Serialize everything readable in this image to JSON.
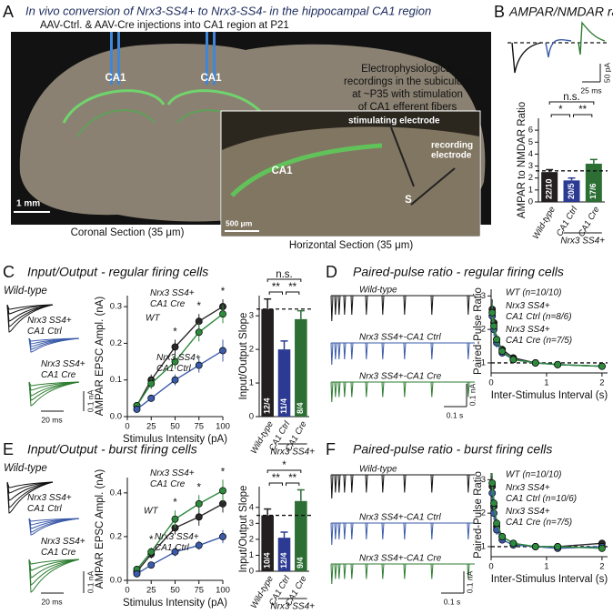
{
  "figure": {
    "panel_a": {
      "letter": "A",
      "title": "In vivo conversion of Nrx3-SS4+ to Nrx3-SS4- in the hippocampal CA1 region",
      "subtitle": "AAV-Ctrl. & AAV-Cre injections into CA1 region at P21",
      "region_left": "CA1",
      "region_right": "CA1",
      "scale_coronal": "1 mm",
      "caption_coronal": "Coronal Section (35 μm)",
      "inset_lines": [
        "Electrophysiological",
        "recordings in the subiculum",
        "at ~P35 with stimulation",
        "of CA1 efferent fibers"
      ],
      "stim_label": "stimulating electrode",
      "rec_label_lines": [
        "recording",
        "electrode"
      ],
      "region_inset": "CA1",
      "region_s": "S",
      "scale_horizontal": "500 μm",
      "caption_horizontal": "Horizontal Section (35 μm)"
    },
    "panel_b": {
      "letter": "B",
      "scale_x": "25 ms",
      "scale_y": "50 pA"
    },
    "panel_c": {
      "letter": "C",
      "trace_labels": [
        "Wild-type",
        "Nrx3 SS4+ CA1 Ctrl",
        "Nrx3 SS4+ CA1 Cre"
      ],
      "scale_x": "20 ms",
      "scale_y": "0.1 nA"
    },
    "panel_d": {
      "letter": "D",
      "trace_labels": [
        "Wild-type",
        "Nrx3 SS4+-CA1 Ctrl",
        "Nrx3 SS4+-CA1 Cre"
      ],
      "scale_x": "0.1 s",
      "scale_y": "0.1 nA"
    },
    "panel_e": {
      "letter": "E",
      "trace_labels": [
        "Wild-type",
        "Nrx3 SS4+ CA1 Ctrl",
        "Nrx3 SS4+ CA1 Cre"
      ],
      "scale_x": "20 ms",
      "scale_y": "0.1 nA"
    },
    "panel_f": {
      "letter": "F",
      "trace_labels": [
        "Wild-type",
        "Nrx3 SS4+-CA1 Ctrl",
        "Nrx3 SS4+-CA1 Cre"
      ],
      "scale_x": "0.1 s",
      "scale_y": "0.1 nA"
    }
  },
  "chart_data": [
    {
      "type": "bar",
      "title": "AMPAR/NMDAR ratio",
      "ylabel": "AMPAR to NMDAR Ratio",
      "categories": [
        "Wild-type",
        "CA1 Ctrl",
        "CA1 Cre"
      ],
      "group_label": "Nrx3 SS4+",
      "values": [
        2.5,
        1.8,
        3.2
      ],
      "errors": [
        0.2,
        0.2,
        0.35
      ],
      "n_labels": [
        "22/10",
        "20/5",
        "17/6"
      ],
      "colors": [
        "#231f20",
        "#2c3a93",
        "#2d6e35"
      ],
      "ylim": [
        0,
        7
      ],
      "yticks": [
        0,
        1,
        2,
        3,
        4,
        5,
        6
      ],
      "reference_line": 2.6,
      "significance": [
        {
          "label": "*",
          "from": 0,
          "to": 1
        },
        {
          "label": "**",
          "from": 1,
          "to": 2
        },
        {
          "label": "n.s.",
          "from": 0,
          "to": 2
        }
      ]
    },
    {
      "type": "line",
      "title": "Input/Output - regular firing cells",
      "xlabel": "Stimulus Intensity (pA)",
      "ylabel": "AMPAR EPSC Ampl. (nA)",
      "x": [
        10,
        25,
        50,
        75,
        100
      ],
      "xlim": [
        0,
        100
      ],
      "xticks": [
        0,
        25,
        50,
        75,
        100
      ],
      "ylim": [
        0,
        0.33
      ],
      "yticks": [
        {
          "value": 0,
          "label": "0.0"
        },
        0.1,
        0.2,
        0.3
      ],
      "series": [
        {
          "name": "WT",
          "color": "#2a2a2a",
          "values": [
            0.03,
            0.1,
            0.19,
            0.26,
            0.3
          ],
          "errors": [
            0.005,
            0.015,
            0.02,
            0.02,
            0.02
          ]
        },
        {
          "name": "Nrx3 SS4+ CA1 Cre",
          "color": "#2e8b3e",
          "values": [
            0.03,
            0.09,
            0.15,
            0.23,
            0.28
          ],
          "errors": [
            0.005,
            0.015,
            0.02,
            0.025,
            0.025
          ]
        },
        {
          "name": "Nrx3 SS4+ CA1 Ctrl",
          "color": "#3b5ba9",
          "values": [
            0.02,
            0.05,
            0.1,
            0.14,
            0.18
          ],
          "errors": [
            0.005,
            0.01,
            0.015,
            0.02,
            0.03
          ]
        }
      ],
      "significance": [
        {
          "x": 50,
          "label": "*"
        },
        {
          "x": 75,
          "label": "*"
        },
        {
          "x": 100,
          "label": "*"
        }
      ]
    },
    {
      "type": "bar",
      "ylabel": "Input/Output Slope",
      "categories": [
        "Wild-type",
        "CA1 Ctrl",
        "CA1 Cre"
      ],
      "group_label": "Nrx3 SS4+",
      "values": [
        3.2,
        2.0,
        2.9
      ],
      "errors": [
        0.3,
        0.25,
        0.25
      ],
      "n_labels": [
        "12/4",
        "11/4",
        "8/4"
      ],
      "colors": [
        "#231f20",
        "#2c3a93",
        "#2d6e35"
      ],
      "ylim": [
        0,
        3.6
      ],
      "yticks": [
        0,
        1,
        2,
        3
      ],
      "reference_line": 3.2,
      "significance": [
        {
          "label": "**",
          "from": 0,
          "to": 1
        },
        {
          "label": "**",
          "from": 1,
          "to": 2
        },
        {
          "label": "n.s.",
          "from": 0,
          "to": 2
        }
      ]
    },
    {
      "type": "line",
      "title": "Paired-pulse ratio - regular firing cells",
      "xlabel": "Inter-Stimulus Interval (s)",
      "ylabel": "Paired-Pulse Ratio",
      "x": [
        0.02,
        0.05,
        0.1,
        0.2,
        0.4,
        0.8,
        1.2,
        2
      ],
      "xlim": [
        0,
        2.1
      ],
      "xticks": [
        0,
        1,
        2
      ],
      "ylim": [
        0.7,
        3.2
      ],
      "yticks": [
        1,
        2,
        3
      ],
      "reference_line": 1,
      "series": [
        {
          "name": "WT (n=10/10)",
          "color": "#2a2a2a",
          "values": [
            2.6,
            2.2,
            1.7,
            1.4,
            1.15,
            1.0,
            0.95,
            0.9
          ],
          "errors": [
            0.3,
            0.2,
            0.15,
            0.1,
            0.08,
            0.06,
            0.06,
            0.08
          ]
        },
        {
          "name": "Nrx3 SS4+ CA1 Ctrl (n=8/6)",
          "color": "#3b5ba9",
          "values": [
            2.4,
            2.0,
            1.6,
            1.3,
            1.1,
            1.0,
            0.95,
            0.9
          ],
          "errors": [
            0.3,
            0.2,
            0.15,
            0.1,
            0.08,
            0.06,
            0.06,
            0.08
          ]
        },
        {
          "name": "Nrx3 SS4+ CA1 Cre (n=7/5)",
          "color": "#2e8b3e",
          "values": [
            2.5,
            2.1,
            1.7,
            1.35,
            1.1,
            1.0,
            0.95,
            0.9
          ],
          "errors": [
            0.3,
            0.2,
            0.15,
            0.1,
            0.08,
            0.06,
            0.06,
            0.08
          ]
        }
      ]
    },
    {
      "type": "line",
      "title": "Input/Output - burst firing cells",
      "xlabel": "Stimulus Intensity (pA)",
      "ylabel": "AMPAR EPSC Ampl. (nA)",
      "x": [
        10,
        25,
        50,
        75,
        100
      ],
      "xlim": [
        0,
        100
      ],
      "xticks": [
        0,
        25,
        50,
        75,
        100
      ],
      "ylim": [
        0,
        0.47
      ],
      "yticks": [
        {
          "value": 0,
          "label": "0.0"
        },
        0.2,
        0.4
      ],
      "series": [
        {
          "name": "WT",
          "color": "#2a2a2a",
          "values": [
            0.04,
            0.12,
            0.24,
            0.29,
            0.35
          ],
          "errors": [
            0.01,
            0.02,
            0.03,
            0.04,
            0.04
          ]
        },
        {
          "name": "Nrx3 SS4+ CA1 Cre",
          "color": "#2e8b3e",
          "values": [
            0.05,
            0.13,
            0.28,
            0.35,
            0.41
          ],
          "errors": [
            0.01,
            0.02,
            0.04,
            0.04,
            0.05
          ]
        },
        {
          "name": "Nrx3 SS4+ CA1 Ctrl",
          "color": "#3b5ba9",
          "values": [
            0.03,
            0.07,
            0.13,
            0.16,
            0.2
          ],
          "errors": [
            0.005,
            0.01,
            0.02,
            0.02,
            0.03
          ]
        }
      ],
      "significance": [
        {
          "x": 25,
          "label": "*"
        },
        {
          "x": 50,
          "label": "*"
        },
        {
          "x": 75,
          "label": "*"
        },
        {
          "x": 100,
          "label": "*"
        }
      ]
    },
    {
      "type": "bar",
      "ylabel": "Input/Output Slope",
      "categories": [
        "Wild-type",
        "CA1 Ctrl",
        "CA1 Cre"
      ],
      "group_label": "Nrx3 SS4+",
      "values": [
        3.5,
        2.1,
        4.4
      ],
      "errors": [
        0.4,
        0.35,
        0.7
      ],
      "n_labels": [
        "10/4",
        "12/4",
        "9/4"
      ],
      "colors": [
        "#231f20",
        "#2c3a93",
        "#2d6e35"
      ],
      "ylim": [
        0,
        5.3
      ],
      "yticks": [
        0,
        1,
        2,
        3,
        4
      ],
      "reference_line": 3.5,
      "significance": [
        {
          "label": "**",
          "from": 0,
          "to": 1
        },
        {
          "label": "**",
          "from": 1,
          "to": 2
        },
        {
          "label": "*",
          "from": 0,
          "to": 2
        }
      ]
    },
    {
      "type": "line",
      "title": "Paired-pulse ratio - burst firing cells",
      "xlabel": "Inter-Stimulus Interval (s)",
      "ylabel": "Paired-Pulse Ratio",
      "x": [
        0.02,
        0.05,
        0.1,
        0.2,
        0.4,
        0.8,
        1.2,
        2
      ],
      "xlim": [
        0,
        2.1
      ],
      "xticks": [
        0,
        1,
        2
      ],
      "ylim": [
        0.7,
        3.2
      ],
      "yticks": [
        1,
        2,
        3
      ],
      "reference_line": 1,
      "series": [
        {
          "name": "WT (n=10/10)",
          "color": "#2a2a2a",
          "values": [
            2.8,
            2.2,
            1.6,
            1.3,
            1.1,
            1.0,
            1.0,
            1.1
          ],
          "errors": [
            0.3,
            0.2,
            0.15,
            0.1,
            0.08,
            0.06,
            0.06,
            0.08
          ]
        },
        {
          "name": "Nrx3 SS4+ CA1 Ctrl (n=10/6)",
          "color": "#3b5ba9",
          "values": [
            2.6,
            2.0,
            1.5,
            1.2,
            1.05,
            1.0,
            0.95,
            1.0
          ],
          "errors": [
            0.3,
            0.2,
            0.15,
            0.1,
            0.08,
            0.06,
            0.06,
            0.08
          ]
        },
        {
          "name": "Nrx3 SS4+ CA1 Cre (n=7/5)",
          "color": "#2e8b3e",
          "values": [
            2.9,
            2.3,
            1.7,
            1.3,
            1.1,
            1.0,
            1.0,
            0.95
          ],
          "errors": [
            0.3,
            0.2,
            0.15,
            0.1,
            0.08,
            0.06,
            0.06,
            0.08
          ]
        }
      ]
    }
  ]
}
